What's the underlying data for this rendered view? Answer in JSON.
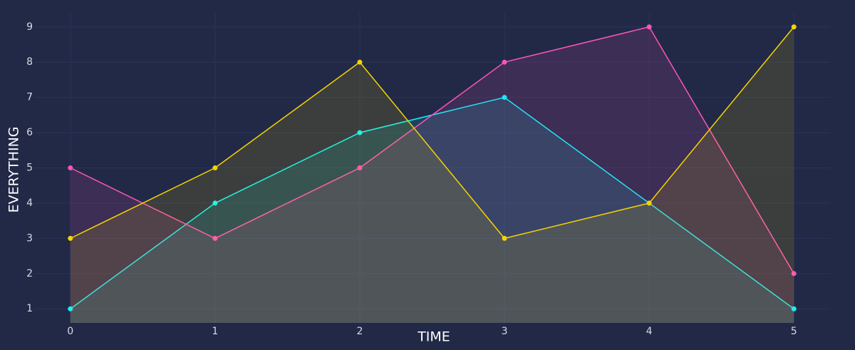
{
  "chart_data": {
    "type": "line",
    "x_label": "TIME",
    "y_label": "EVERYTHING",
    "x": [
      0,
      1,
      2,
      3,
      4,
      5
    ],
    "series": [
      {
        "color": "#08F7FE",
        "values": [
          1,
          4,
          6,
          7,
          4,
          1
        ]
      },
      {
        "color": "#FE53BB",
        "values": [
          5,
          3,
          5,
          8,
          9,
          2
        ]
      },
      {
        "color": "#F5D300",
        "values": [
          3,
          5,
          8,
          3,
          4,
          9
        ]
      }
    ],
    "xlim": [
      -0.25,
      5.25
    ],
    "ylim": [
      0.6,
      9.4
    ],
    "xticks": [
      0,
      1,
      2,
      3,
      4,
      5
    ],
    "yticks": [
      1,
      2,
      3,
      4,
      5,
      6,
      7,
      8,
      9
    ],
    "grid": true,
    "area_fill": true
  }
}
